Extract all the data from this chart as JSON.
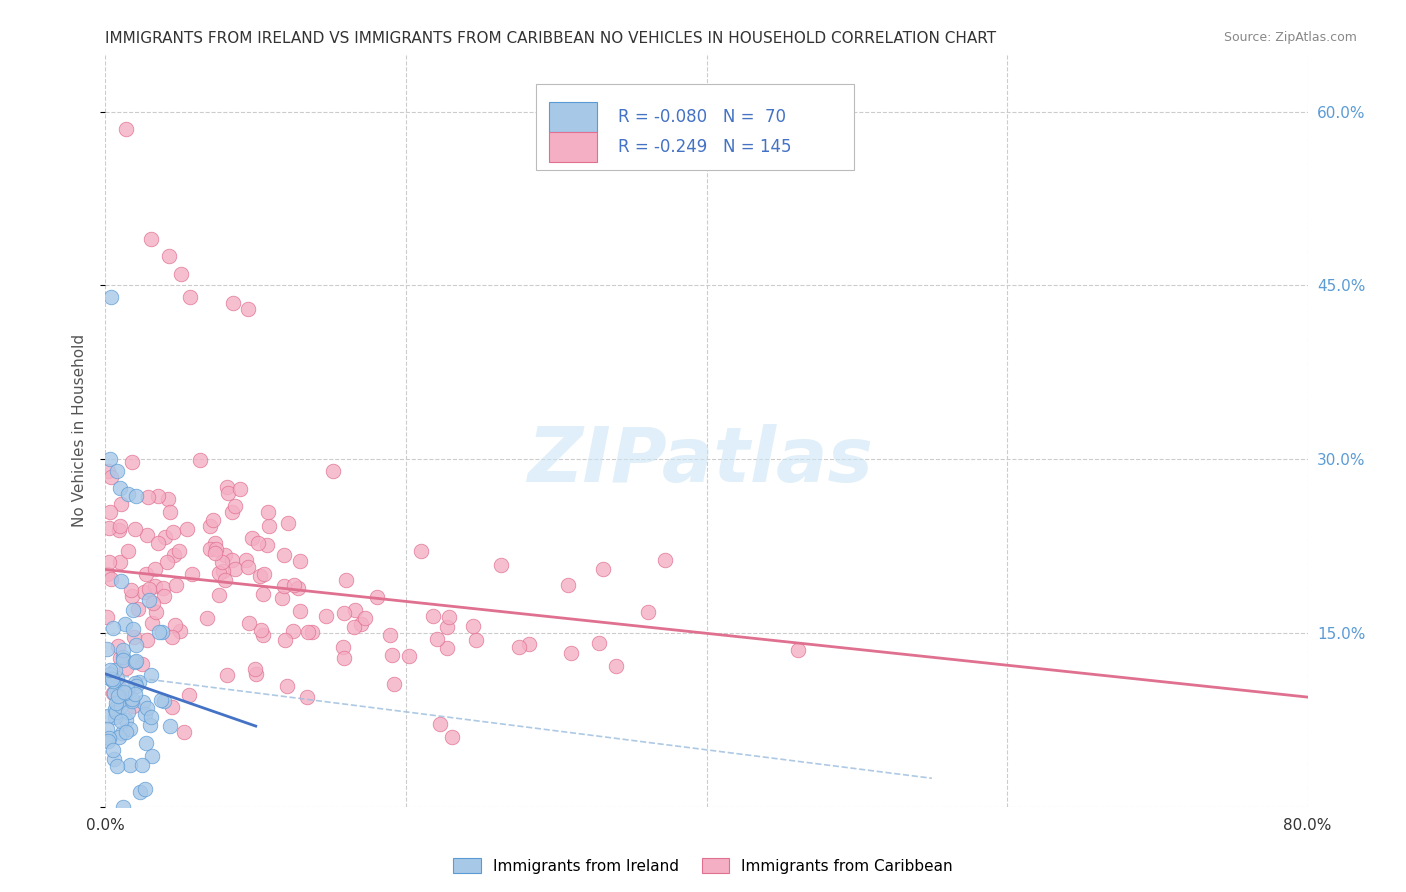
{
  "title": "IMMIGRANTS FROM IRELAND VS IMMIGRANTS FROM CARIBBEAN NO VEHICLES IN HOUSEHOLD CORRELATION CHART",
  "source": "Source: ZipAtlas.com",
  "ylabel": "No Vehicles in Household",
  "xlim": [
    0.0,
    0.8
  ],
  "ylim": [
    0.0,
    0.65
  ],
  "xtick_positions": [
    0.0,
    0.2,
    0.4,
    0.6,
    0.8
  ],
  "xticklabels": [
    "0.0%",
    "",
    "",
    "",
    "80.0%"
  ],
  "ytick_positions": [
    0.0,
    0.15,
    0.3,
    0.45,
    0.6
  ],
  "yticklabels_right": [
    "",
    "15.0%",
    "30.0%",
    "45.0%",
    "60.0%"
  ],
  "color_ireland": "#a8c8e8",
  "color_caribbean": "#f4afc4",
  "color_ireland_edge": "#5b9bd5",
  "color_caribbean_edge": "#e07090",
  "color_ireland_line": "#4472c4",
  "color_caribbean_line": "#e07090",
  "color_ireland_dash": "#a0c0e0",
  "background_color": "#ffffff",
  "grid_color": "#cccccc",
  "title_color": "#333333",
  "right_axis_color": "#5b9bd5",
  "legend_text_color": "#4472c4",
  "watermark_color": "#cce5f5",
  "seed": 42
}
